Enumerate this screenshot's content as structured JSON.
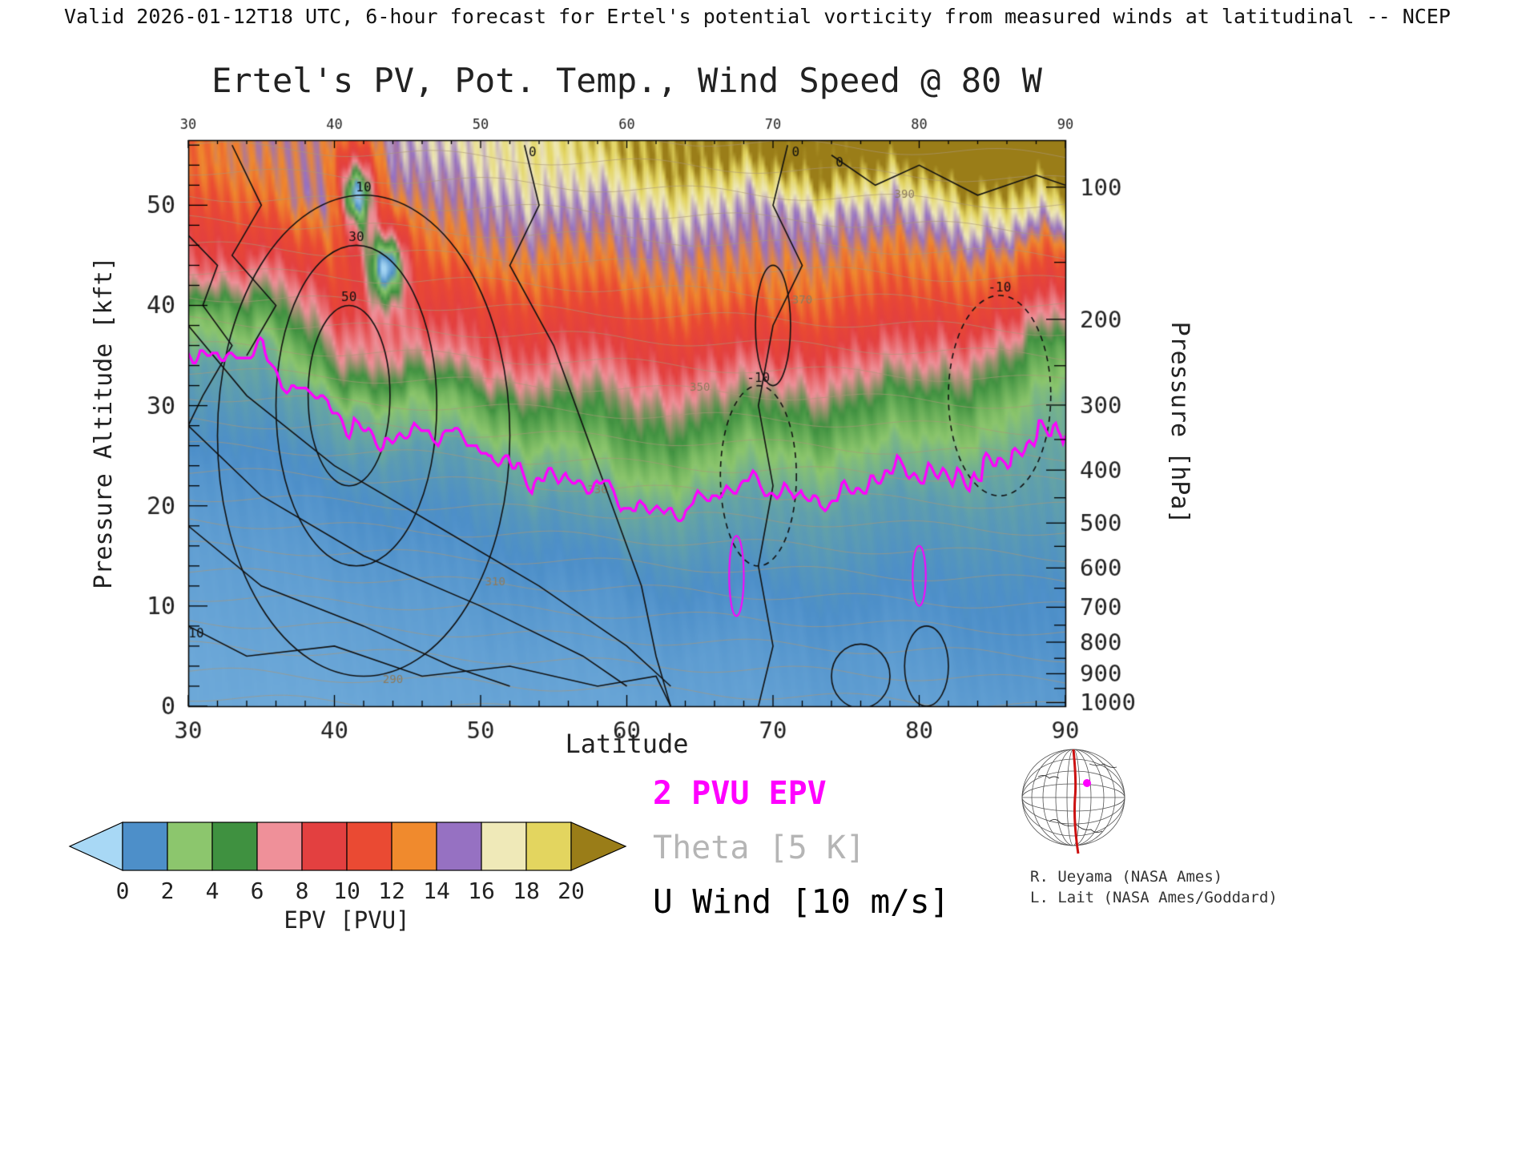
{
  "header": {
    "valid_line": "Valid 2026-01-12T18 UTC, 6-hour forecast for Ertel's potential vorticity from measured winds at latitudinal -- NCEP",
    "title": "Ertel's PV, Pot. Temp., Wind Speed @ 80 W"
  },
  "axes": {
    "x": {
      "label": "Latitude",
      "range": [
        30,
        90
      ],
      "ticks": [
        30,
        40,
        50,
        60,
        70,
        80,
        90
      ],
      "minor_step": 2,
      "top_ticks": [
        30,
        40,
        50,
        60,
        70,
        80,
        90
      ]
    },
    "y_left": {
      "label": "Pressure Altitude [kft]",
      "range": [
        0,
        56.5
      ],
      "ticks": [
        0,
        10,
        20,
        30,
        40,
        50
      ],
      "minor_step": 2
    },
    "y_right": {
      "label": "Pressure [hPa]",
      "ticks": [
        100,
        200,
        300,
        400,
        500,
        600,
        700,
        800,
        900,
        1000
      ],
      "minor_ticks": [
        150,
        250,
        350,
        450,
        550,
        650,
        750,
        850,
        950
      ]
    }
  },
  "chart_data": {
    "type": "heatmap",
    "title": "Ertel's PV, Pot. Temp., Wind Speed @ 80 W",
    "xlabel": "Latitude",
    "ylabel": "Pressure Altitude [kft]",
    "field_name": "Ertel's potential vorticity [PVU]",
    "grid": {
      "lats": [
        30,
        35,
        40,
        45,
        50,
        55,
        60,
        65,
        70,
        75,
        80,
        85,
        90
      ],
      "alts_kft": [
        0,
        5,
        10,
        15,
        20,
        25,
        30,
        35,
        40,
        45,
        50,
        55
      ],
      "epv_pvu": [
        [
          0.3,
          0.3,
          0.3,
          0.4,
          0.4,
          0.4,
          0.4,
          0.5,
          0.5,
          0.6,
          0.5,
          0.6,
          0.7
        ],
        [
          0.3,
          0.4,
          0.4,
          0.5,
          0.5,
          0.5,
          0.6,
          0.6,
          0.7,
          0.7,
          0.7,
          0.8,
          0.9
        ],
        [
          0.4,
          0.5,
          0.5,
          0.6,
          0.7,
          0.7,
          0.8,
          0.9,
          0.9,
          1.0,
          0.9,
          1.0,
          1.0
        ],
        [
          0.5,
          0.6,
          0.7,
          0.8,
          0.9,
          1.0,
          1.2,
          1.3,
          1.3,
          1.3,
          1.2,
          1.2,
          1.3
        ],
        [
          0.6,
          0.8,
          0.9,
          1.1,
          1.2,
          1.4,
          2.0,
          1.8,
          1.7,
          1.6,
          1.5,
          1.5,
          1.6
        ],
        [
          0.8,
          1.0,
          1.3,
          1.5,
          1.7,
          2.5,
          4.0,
          3.5,
          3.0,
          2.8,
          2.5,
          2.0,
          1.8
        ],
        [
          1.2,
          1.4,
          2.0,
          3.0,
          4.0,
          5.0,
          6.0,
          6.0,
          5.5,
          5.0,
          4.5,
          3.5,
          2.2
        ],
        [
          1.6,
          1.9,
          6.0,
          7.0,
          8.0,
          8.0,
          9.0,
          9.0,
          9.0,
          8.0,
          8.0,
          6.0,
          4.0
        ],
        [
          3.0,
          5.0,
          9.0,
          10.0,
          10.0,
          11.0,
          11.0,
          12.0,
          12.0,
          11.0,
          11.0,
          10.0,
          8.0
        ],
        [
          8.0,
          9.0,
          12.0,
          12.0,
          13.0,
          13.0,
          14.0,
          14.0,
          14.0,
          13.0,
          13.0,
          13.0,
          12.0
        ],
        [
          10.0,
          12.0,
          16.0,
          14.0,
          15.0,
          16.0,
          16.0,
          17.0,
          16.0,
          16.0,
          17.0,
          18.0,
          19.0
        ],
        [
          12.0,
          14.0,
          14.0,
          16.0,
          17.0,
          18.0,
          20.0,
          21.0,
          22.0,
          22.0,
          23.0,
          24.0,
          25.0
        ]
      ]
    },
    "anomalies": [
      {
        "center": [
          41.5,
          51
        ],
        "amp": -10,
        "sigma": [
          1.1,
          3.8
        ]
      },
      {
        "center": [
          41.5,
          51
        ],
        "amp": -5,
        "sigma": [
          0.5,
          1.6
        ]
      },
      {
        "center": [
          43.5,
          44
        ],
        "amp": -9,
        "sigma": [
          1.0,
          3.2
        ]
      },
      {
        "center": [
          43.5,
          44
        ],
        "amp": -4,
        "sigma": [
          0.5,
          1.4
        ]
      }
    ],
    "colormap": {
      "stop_values": [
        -1,
        1,
        3,
        5,
        7,
        9,
        11,
        13,
        15,
        17,
        19,
        21
      ],
      "stop_colors": [
        "#a8d8f5",
        "#4d8fc9",
        "#8cc66d",
        "#3f9140",
        "#ef9099",
        "#e34040",
        "#ea4a33",
        "#f08a2d",
        "#9671c2",
        "#efe9b8",
        "#e3d55f",
        "#9a7d18"
      ]
    },
    "two_pvu_contour_pvu": 2,
    "pv_filaments": [
      {
        "center": [
          67.5,
          13
        ],
        "radii": [
          0.5,
          4
        ]
      },
      {
        "center": [
          80,
          13
        ],
        "radii": [
          0.45,
          3
        ]
      }
    ],
    "theta_levels_K": [
      285,
      290,
      295,
      300,
      305,
      310,
      315,
      320,
      325,
      330,
      335,
      340,
      345,
      350,
      355,
      360,
      365,
      370,
      375,
      380,
      385,
      390,
      395,
      400
    ],
    "theta_label_levels": [
      290,
      310,
      330,
      350,
      370,
      390
    ],
    "wind_contours": [
      {
        "label": "10",
        "style": "solid",
        "shape": "ellipse",
        "center": [
          42,
          27
        ],
        "radii": [
          10,
          24
        ]
      },
      {
        "label": "30",
        "style": "solid",
        "shape": "ellipse",
        "center": [
          41.5,
          30
        ],
        "radii": [
          5.5,
          16
        ]
      },
      {
        "label": "50",
        "style": "solid",
        "shape": "ellipse",
        "center": [
          41,
          31
        ],
        "radii": [
          2.8,
          9
        ]
      },
      {
        "label": "0",
        "style": "solid",
        "shape": "polyline",
        "points": [
          [
            53,
            56
          ],
          [
            54,
            50
          ],
          [
            52,
            44
          ],
          [
            55,
            36
          ],
          [
            57,
            28
          ],
          [
            59,
            20
          ],
          [
            61,
            12
          ],
          [
            62,
            5
          ],
          [
            63,
            0
          ]
        ]
      },
      {
        "label": "0",
        "style": "solid",
        "shape": "polyline",
        "points": [
          [
            71,
            56
          ],
          [
            70,
            50
          ],
          [
            72,
            44
          ],
          [
            70,
            38
          ],
          [
            69,
            30
          ],
          [
            70,
            22
          ],
          [
            69,
            14
          ],
          [
            70,
            6
          ],
          [
            69,
            0
          ]
        ]
      },
      {
        "label": "0",
        "style": "solid",
        "shape": "polyline",
        "points": [
          [
            74,
            55
          ],
          [
            77,
            52
          ],
          [
            80,
            54
          ],
          [
            84,
            51
          ],
          [
            88,
            53
          ],
          [
            90,
            52
          ]
        ]
      },
      {
        "label": "",
        "style": "solid",
        "shape": "polyline",
        "points": [
          [
            33,
            56
          ],
          [
            35,
            50
          ],
          [
            33,
            45
          ],
          [
            36,
            40
          ],
          [
            34,
            35
          ]
        ]
      },
      {
        "label": "",
        "style": "solid",
        "shape": "polyline",
        "points": [
          [
            30,
            47
          ],
          [
            32,
            44
          ],
          [
            31,
            40
          ],
          [
            33,
            36
          ],
          [
            31,
            31
          ],
          [
            30,
            28
          ]
        ]
      },
      {
        "label": "",
        "style": "solid",
        "shape": "polyline",
        "points": [
          [
            30,
            38
          ],
          [
            34,
            31
          ],
          [
            40,
            24
          ],
          [
            47,
            18
          ],
          [
            54,
            12
          ],
          [
            60,
            6
          ],
          [
            63,
            2
          ]
        ]
      },
      {
        "label": "",
        "style": "solid",
        "shape": "polyline",
        "points": [
          [
            30,
            28
          ],
          [
            35,
            21
          ],
          [
            42,
            15
          ],
          [
            50,
            10
          ],
          [
            57,
            5
          ],
          [
            60,
            2
          ]
        ]
      },
      {
        "label": "",
        "style": "solid",
        "shape": "polyline",
        "points": [
          [
            30,
            18
          ],
          [
            35,
            12
          ],
          [
            42,
            8
          ],
          [
            48,
            4
          ],
          [
            52,
            2
          ]
        ]
      },
      {
        "label": "10",
        "style": "solid",
        "shape": "polyline",
        "points": [
          [
            30,
            8
          ],
          [
            34,
            5
          ],
          [
            40,
            6
          ],
          [
            46,
            3
          ],
          [
            52,
            4
          ],
          [
            58,
            2
          ],
          [
            62,
            3
          ],
          [
            63,
            0
          ]
        ]
      },
      {
        "label": "",
        "style": "solid",
        "shape": "ellipse",
        "center": [
          76,
          3
        ],
        "radii": [
          2,
          3.2
        ]
      },
      {
        "label": "",
        "style": "solid",
        "shape": "ellipse",
        "center": [
          80.5,
          4
        ],
        "radii": [
          1.5,
          4
        ]
      },
      {
        "label": "",
        "style": "solid",
        "shape": "ellipse",
        "center": [
          70,
          38
        ],
        "radii": [
          1.2,
          6
        ]
      },
      {
        "label": "-10",
        "style": "dashed",
        "shape": "ellipse",
        "center": [
          69,
          23
        ],
        "radii": [
          2.6,
          9
        ]
      },
      {
        "label": "-10",
        "style": "dashed",
        "shape": "ellipse",
        "center": [
          85.5,
          31
        ],
        "radii": [
          3.5,
          10
        ]
      }
    ]
  },
  "colorbar": {
    "values": [
      0,
      2,
      4,
      6,
      8,
      10,
      12,
      14,
      16,
      18,
      20
    ],
    "segment_colors": [
      "#4d8fc9",
      "#8cc66d",
      "#3f9140",
      "#ef9099",
      "#e34040",
      "#ea4a33",
      "#f08a2d",
      "#9671c2",
      "#efe9b8",
      "#e3d55f"
    ],
    "under_color": "#a8d8f5",
    "over_color": "#9a7d18",
    "label": "EPV [PVU]"
  },
  "legend": {
    "epv": "2 PVU EPV",
    "theta": "Theta [5 K]",
    "wind": "U Wind [10 m/s]",
    "epv_color": "#ff00ff",
    "theta_color": "#b5b5b5",
    "wind_color": "#000000"
  },
  "credits": {
    "line1": "R. Ueyama (NASA Ames)",
    "line2": "L. Lait (NASA Ames/Goddard)"
  }
}
